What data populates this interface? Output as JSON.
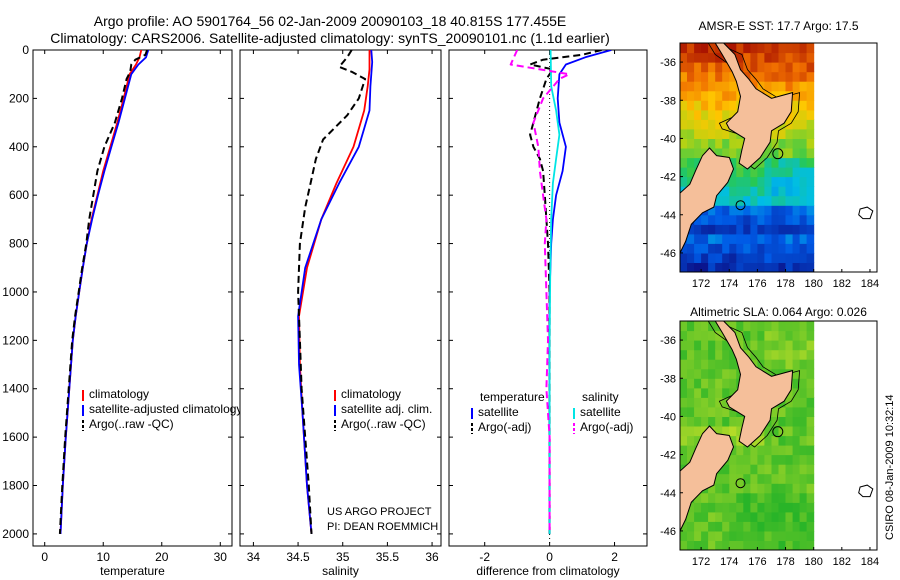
{
  "header": {
    "line1": "Argo profile: AO 5901764_56 02-Jan-2009 20090103_18 40.815S 177.455E",
    "line2": "Climatology: CARS2006. Satellite-adjusted climatology: synTS_20090101.nc (1.1d earlier)"
  },
  "credit": {
    "line1": "US ARGO PROJECT",
    "line2": "PI: DEAN ROEMMICH"
  },
  "side_stamp": "CSIRO 08-Jan-2009 10:32:14",
  "colors": {
    "red": "#ff0000",
    "blue": "#0000ff",
    "black": "#000000",
    "cyan": "#00e5e5",
    "magenta": "#ff00ff",
    "land": "#f5bf9a"
  },
  "chart_data": [
    {
      "type": "line",
      "id": "temperature",
      "xlabel": "temperature",
      "ylabel": "",
      "xlim": [
        -2,
        32
      ],
      "ylim": [
        2050,
        0
      ],
      "xticks": [
        0,
        10,
        20,
        30
      ],
      "yticks": [
        0,
        200,
        400,
        600,
        800,
        1000,
        1200,
        1400,
        1600,
        1800,
        2000
      ],
      "legend": [
        "climatology",
        "satellite-adjusted climatology",
        "Argo(..raw -QC)"
      ],
      "series": [
        {
          "name": "climatology",
          "color": "red",
          "dash": "",
          "points": [
            [
              16.5,
              0
            ],
            [
              16.2,
              30
            ],
            [
              15.6,
              60
            ],
            [
              14.5,
              100
            ],
            [
              13.5,
              200
            ],
            [
              12.4,
              300
            ],
            [
              11.2,
              400
            ],
            [
              10.0,
              500
            ],
            [
              9.0,
              600
            ],
            [
              8.0,
              700
            ],
            [
              7.2,
              800
            ],
            [
              6.5,
              900
            ],
            [
              5.9,
              1000
            ],
            [
              5.3,
              1100
            ],
            [
              4.8,
              1200
            ],
            [
              4.2,
              1400
            ],
            [
              3.6,
              1600
            ],
            [
              3.1,
              1800
            ],
            [
              2.7,
              2000
            ]
          ]
        },
        {
          "name": "satellite-adjusted climatology",
          "color": "blue",
          "dash": "",
          "points": [
            [
              17.7,
              0
            ],
            [
              17.3,
              30
            ],
            [
              16.0,
              60
            ],
            [
              14.8,
              100
            ],
            [
              13.7,
              200
            ],
            [
              12.6,
              300
            ],
            [
              11.4,
              400
            ],
            [
              10.2,
              500
            ],
            [
              9.1,
              600
            ],
            [
              8.1,
              700
            ],
            [
              7.2,
              800
            ],
            [
              6.5,
              900
            ],
            [
              5.9,
              1000
            ],
            [
              5.3,
              1100
            ],
            [
              4.8,
              1200
            ],
            [
              4.2,
              1400
            ],
            [
              3.6,
              1600
            ],
            [
              3.1,
              1800
            ],
            [
              2.7,
              2000
            ]
          ]
        },
        {
          "name": "Argo(..raw -QC)",
          "color": "black",
          "dash": "7,4",
          "points": [
            [
              17.5,
              0
            ],
            [
              17.2,
              20
            ],
            [
              15.5,
              40
            ],
            [
              14.8,
              60
            ],
            [
              14.6,
              90
            ],
            [
              14.0,
              120
            ],
            [
              13.2,
              200
            ],
            [
              12.0,
              300
            ],
            [
              10.2,
              400
            ],
            [
              9.0,
              500
            ],
            [
              8.3,
              600
            ],
            [
              7.6,
              700
            ],
            [
              7.1,
              800
            ],
            [
              6.4,
              900
            ],
            [
              5.8,
              1000
            ],
            [
              5.2,
              1100
            ],
            [
              4.7,
              1200
            ],
            [
              4.1,
              1400
            ],
            [
              3.5,
              1600
            ],
            [
              3.0,
              1800
            ],
            [
              2.6,
              2000
            ]
          ]
        }
      ]
    },
    {
      "type": "line",
      "id": "salinity",
      "xlabel": "salinity",
      "ylabel": "",
      "xlim": [
        33.85,
        36.1
      ],
      "ylim": [
        2050,
        0
      ],
      "xticks": [
        34,
        34.5,
        35,
        35.5,
        36
      ],
      "xticklabels": [
        "34",
        "34.5",
        "35",
        "35.5",
        "36"
      ],
      "legend": [
        "climatology",
        "satellite adj. clim.",
        "Argo(..raw -QC)"
      ],
      "series": [
        {
          "name": "climatology",
          "color": "red",
          "dash": "",
          "points": [
            [
              35.3,
              0
            ],
            [
              35.3,
              80
            ],
            [
              35.28,
              150
            ],
            [
              35.24,
              250
            ],
            [
              35.12,
              400
            ],
            [
              34.93,
              550
            ],
            [
              34.76,
              700
            ],
            [
              34.6,
              900
            ],
            [
              34.51,
              1100
            ],
            [
              34.52,
              1300
            ],
            [
              34.55,
              1500
            ],
            [
              34.6,
              1800
            ],
            [
              34.65,
              2000
            ]
          ]
        },
        {
          "name": "satellite adj. clim.",
          "color": "blue",
          "dash": "",
          "points": [
            [
              35.32,
              0
            ],
            [
              35.33,
              50
            ],
            [
              35.32,
              100
            ],
            [
              35.31,
              150
            ],
            [
              35.3,
              250
            ],
            [
              35.18,
              400
            ],
            [
              34.96,
              550
            ],
            [
              34.76,
              700
            ],
            [
              34.58,
              900
            ],
            [
              34.5,
              1100
            ],
            [
              34.51,
              1300
            ],
            [
              34.55,
              1500
            ],
            [
              34.6,
              1800
            ],
            [
              34.65,
              2000
            ]
          ]
        },
        {
          "name": "Argo(..raw -QC)",
          "color": "black",
          "dash": "7,4",
          "points": [
            [
              35.1,
              0
            ],
            [
              35.05,
              30
            ],
            [
              34.96,
              70
            ],
            [
              35.1,
              90
            ],
            [
              35.2,
              110
            ],
            [
              35.25,
              120
            ],
            [
              35.18,
              200
            ],
            [
              35.05,
              270
            ],
            [
              34.78,
              370
            ],
            [
              34.7,
              450
            ],
            [
              34.64,
              550
            ],
            [
              34.58,
              650
            ],
            [
              34.52,
              800
            ],
            [
              34.5,
              1000
            ],
            [
              34.52,
              1200
            ],
            [
              34.54,
              1400
            ],
            [
              34.58,
              1600
            ],
            [
              34.62,
              1800
            ],
            [
              34.65,
              2000
            ]
          ]
        }
      ]
    },
    {
      "type": "line",
      "id": "difference",
      "xlabel": "difference from climatology",
      "ylabel": "",
      "xlim": [
        -3.1,
        3.0
      ],
      "ylim": [
        2050,
        0
      ],
      "xticks": [
        -2,
        0,
        2
      ],
      "legend_left_title": "temperature",
      "legend_right_title": "salinity",
      "legend": [
        "satellite",
        "Argo(-adj)",
        "satellite",
        "Argo(-adj)"
      ],
      "series": [
        {
          "name": "temperature satellite",
          "color": "blue",
          "dash": "",
          "points": [
            [
              1.9,
              0
            ],
            [
              1.1,
              30
            ],
            [
              0.5,
              60
            ],
            [
              0.3,
              100
            ],
            [
              0.25,
              200
            ],
            [
              0.3,
              300
            ],
            [
              0.5,
              400
            ],
            [
              0.4,
              500
            ],
            [
              0.2,
              600
            ],
            [
              0.1,
              700
            ],
            [
              0.05,
              800
            ],
            [
              0,
              1000
            ],
            [
              0,
              2000
            ]
          ]
        },
        {
          "name": "temperature Argo(-adj)",
          "color": "black",
          "dash": "7,4",
          "points": [
            [
              1.6,
              0
            ],
            [
              1.0,
              20
            ],
            [
              -0.2,
              40
            ],
            [
              -0.6,
              60
            ],
            [
              0.1,
              80
            ],
            [
              -0.1,
              120
            ],
            [
              -0.3,
              200
            ],
            [
              -0.5,
              300
            ],
            [
              -0.6,
              350
            ],
            [
              -0.5,
              400
            ],
            [
              -0.3,
              450
            ],
            [
              -0.2,
              500
            ],
            [
              -0.15,
              600
            ],
            [
              -0.1,
              700
            ],
            [
              -0.05,
              800
            ],
            [
              0,
              1000
            ],
            [
              0,
              2000
            ]
          ]
        },
        {
          "name": "salinity satellite",
          "color": "cyan",
          "dash": "",
          "points": [
            [
              0.03,
              0
            ],
            [
              0.05,
              150
            ],
            [
              0.2,
              250
            ],
            [
              0.3,
              350
            ],
            [
              0.2,
              450
            ],
            [
              0.1,
              550
            ],
            [
              0.05,
              700
            ],
            [
              0.02,
              900
            ],
            [
              0,
              1200
            ],
            [
              0,
              2000
            ]
          ]
        },
        {
          "name": "salinity Argo(-adj)",
          "color": "magenta",
          "dash": "7,4",
          "points": [
            [
              -1.0,
              0
            ],
            [
              -1.2,
              60
            ],
            [
              0.6,
              100
            ],
            [
              0.3,
              120
            ],
            [
              -0.2,
              200
            ],
            [
              -0.5,
              300
            ],
            [
              -0.35,
              400
            ],
            [
              -0.3,
              500
            ],
            [
              -0.2,
              600
            ],
            [
              -0.1,
              700
            ],
            [
              -0.15,
              800
            ],
            [
              -0.1,
              1000
            ],
            [
              -0.05,
              1200
            ],
            [
              -0.1,
              1400
            ],
            [
              0,
              1600
            ],
            [
              0,
              2000
            ]
          ]
        }
      ]
    },
    {
      "type": "heatmap",
      "id": "sst_map",
      "title": "AMSR-E SST: 17.7  Argo: 17.5",
      "xlim": [
        170.5,
        184.5
      ],
      "ylim": [
        -47,
        -35
      ],
      "xticks": [
        172,
        174,
        176,
        178,
        180,
        182,
        184
      ],
      "yticks": [
        -36,
        -38,
        -40,
        -42,
        -44,
        -46
      ]
    },
    {
      "type": "heatmap",
      "id": "sla_map",
      "title": "Altimetric SLA: 0.064  Argo: 0.026",
      "xlim": [
        170.5,
        184.5
      ],
      "ylim": [
        -47,
        -35
      ],
      "xticks": [
        172,
        174,
        176,
        178,
        180,
        182,
        184
      ],
      "yticks": [
        -36,
        -38,
        -40,
        -42,
        -44,
        -46
      ]
    }
  ]
}
